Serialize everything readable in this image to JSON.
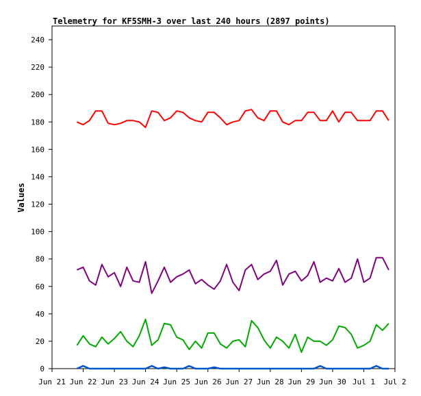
{
  "chart_data": {
    "type": "line",
    "title": "Telemetry for KF5SMH-3 over last 240 hours (2897 points)",
    "xlabel": "",
    "ylabel": "Values",
    "ylim": [
      0,
      250
    ],
    "yticks": [
      0,
      20,
      40,
      60,
      80,
      100,
      120,
      140,
      160,
      180,
      200,
      220,
      240
    ],
    "xlim": [
      "Jun 21",
      "Jul 2"
    ],
    "xticks": [
      "Jun 21",
      "Jun 22",
      "Jun 23",
      "Jun 24",
      "Jun 25",
      "Jun 26",
      "Jun 27",
      "Jun 28",
      "Jun 29",
      "Jun 30",
      "Jul 1",
      "Jul 2"
    ],
    "grid": false,
    "legend": "none",
    "x": [
      21.8,
      22.0,
      22.2,
      22.4,
      22.6,
      22.8,
      23.0,
      23.2,
      23.4,
      23.6,
      23.8,
      24.0,
      24.2,
      24.4,
      24.6,
      24.8,
      25.0,
      25.2,
      25.4,
      25.6,
      25.8,
      26.0,
      26.2,
      26.4,
      26.6,
      26.8,
      27.0,
      27.2,
      27.4,
      27.6,
      27.8,
      28.0,
      28.2,
      28.4,
      28.6,
      28.8,
      29.0,
      29.2,
      29.4,
      29.6,
      29.8,
      30.0,
      30.2,
      30.4,
      30.6,
      30.8,
      31.0,
      31.2,
      31.4,
      31.6,
      31.8
    ],
    "series": [
      {
        "color": "#ff0000",
        "values": [
          180,
          178,
          181,
          188,
          188,
          179,
          178,
          179,
          181,
          181,
          180,
          176,
          188,
          187,
          181,
          183,
          188,
          187,
          183,
          181,
          180,
          187,
          187,
          183,
          178,
          180,
          181,
          188,
          189,
          183,
          181,
          188,
          188,
          180,
          178,
          181,
          181,
          187,
          187,
          181,
          181,
          188,
          180,
          187,
          187,
          181,
          181,
          181,
          188,
          188,
          181
        ]
      },
      {
        "color": "#800080",
        "values": [
          72,
          74,
          64,
          61,
          76,
          67,
          70,
          60,
          74,
          64,
          63,
          78,
          55,
          64,
          74,
          63,
          67,
          69,
          72,
          62,
          65,
          61,
          58,
          64,
          76,
          63,
          57,
          72,
          76,
          65,
          69,
          71,
          79,
          61,
          69,
          71,
          64,
          68,
          78,
          63,
          66,
          64,
          73,
          63,
          66,
          80,
          63,
          66,
          81,
          81,
          72
        ]
      },
      {
        "color": "#00aa00",
        "values": [
          17,
          24,
          18,
          16,
          23,
          18,
          22,
          27,
          20,
          16,
          24,
          36,
          17,
          21,
          33,
          32,
          23,
          21,
          14,
          20,
          15,
          26,
          26,
          18,
          15,
          20,
          21,
          16,
          35,
          30,
          21,
          15,
          23,
          20,
          15,
          25,
          12,
          23,
          20,
          20,
          17,
          21,
          31,
          30,
          25,
          15,
          17,
          20,
          32,
          28,
          33
        ]
      },
      {
        "color": "#0055cc",
        "values": [
          0,
          2,
          0,
          0,
          0,
          0,
          0,
          0,
          0,
          0,
          0,
          0,
          2,
          0,
          1,
          0,
          0,
          0,
          2,
          0,
          0,
          0,
          1,
          0,
          0,
          0,
          0,
          0,
          0,
          0,
          0,
          0,
          0,
          0,
          0,
          0,
          0,
          0,
          0,
          2,
          0,
          0,
          0,
          0,
          0,
          0,
          0,
          0,
          2,
          0,
          0
        ]
      }
    ]
  }
}
